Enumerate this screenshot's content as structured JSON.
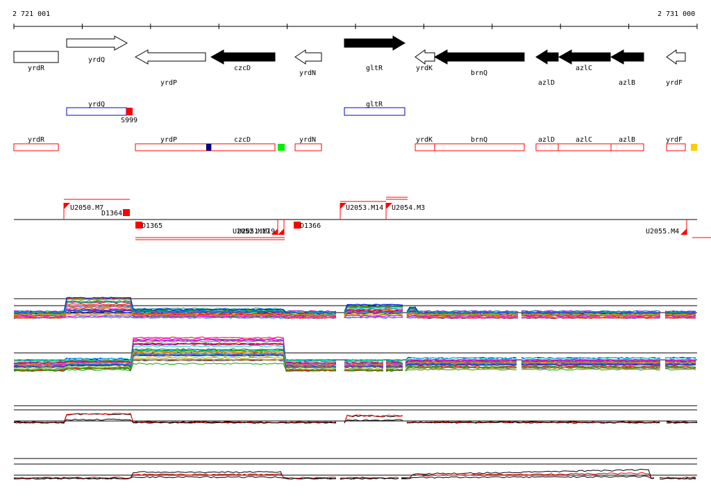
{
  "coords": {
    "start_label": "2 721 001",
    "end_label": "2 731 000"
  },
  "colors": {
    "red": "#ff0000",
    "blue": "#0000cc",
    "navy": "#000080",
    "green": "#00ee00",
    "yellow": "#ffcc00",
    "black": "#000000"
  },
  "genes": [
    {
      "name": "yrdR",
      "strand": "-",
      "filled": false,
      "label_pos": "below"
    },
    {
      "name": "yrdQ",
      "strand": "+",
      "filled": false,
      "label_pos": "below"
    },
    {
      "name": "yrdP",
      "strand": "-",
      "filled": false,
      "label_pos": "below-far"
    },
    {
      "name": "czcD",
      "strand": "-",
      "filled": true,
      "label_pos": "below"
    },
    {
      "name": "yrdN",
      "strand": "-",
      "filled": false,
      "label_pos": "below"
    },
    {
      "name": "gltR",
      "strand": "+",
      "filled": true,
      "label_pos": "below"
    },
    {
      "name": "yrdK",
      "strand": "-",
      "filled": false,
      "label_pos": "below"
    },
    {
      "name": "brnQ",
      "strand": "-",
      "filled": true,
      "label_pos": "below"
    },
    {
      "name": "azlD",
      "strand": "-",
      "filled": true,
      "label_pos": "below-far"
    },
    {
      "name": "azlC",
      "strand": "-",
      "filled": true,
      "label_pos": "below"
    },
    {
      "name": "azlB",
      "strand": "-",
      "filled": true,
      "label_pos": "below-far"
    },
    {
      "name": "yrdF",
      "strand": "-",
      "filled": false,
      "label_pos": "below-far"
    }
  ],
  "regulated": [
    {
      "name": "yrdQ",
      "site": "S999"
    },
    {
      "name": "gltR",
      "site": ""
    }
  ],
  "operons": [
    {
      "labels": [
        "yrdR"
      ]
    },
    {
      "labels": [
        "yrdP",
        "czcD"
      ]
    },
    {
      "labels": [
        "yrdN"
      ]
    },
    {
      "labels": [
        "yrdK",
        "brnQ"
      ]
    },
    {
      "labels": [
        "azlD",
        "azlC",
        "azlB"
      ]
    },
    {
      "labels": [
        "yrdF"
      ]
    }
  ],
  "promoters_top": [
    "U2050.M7",
    "D1364",
    "U2053.M14",
    "U2054.M3"
  ],
  "promoters_bottom": [
    "D1365",
    "U2052.M17",
    "U2051.M19",
    "D1366",
    "U2055.M4"
  ],
  "profile_panels": [
    {
      "kind": "multi",
      "series_count": 30
    },
    {
      "kind": "multi",
      "series_count": 30
    },
    {
      "kind": "pair",
      "series": [
        "black",
        "red"
      ]
    },
    {
      "kind": "pair",
      "series": [
        "black",
        "red"
      ]
    }
  ]
}
